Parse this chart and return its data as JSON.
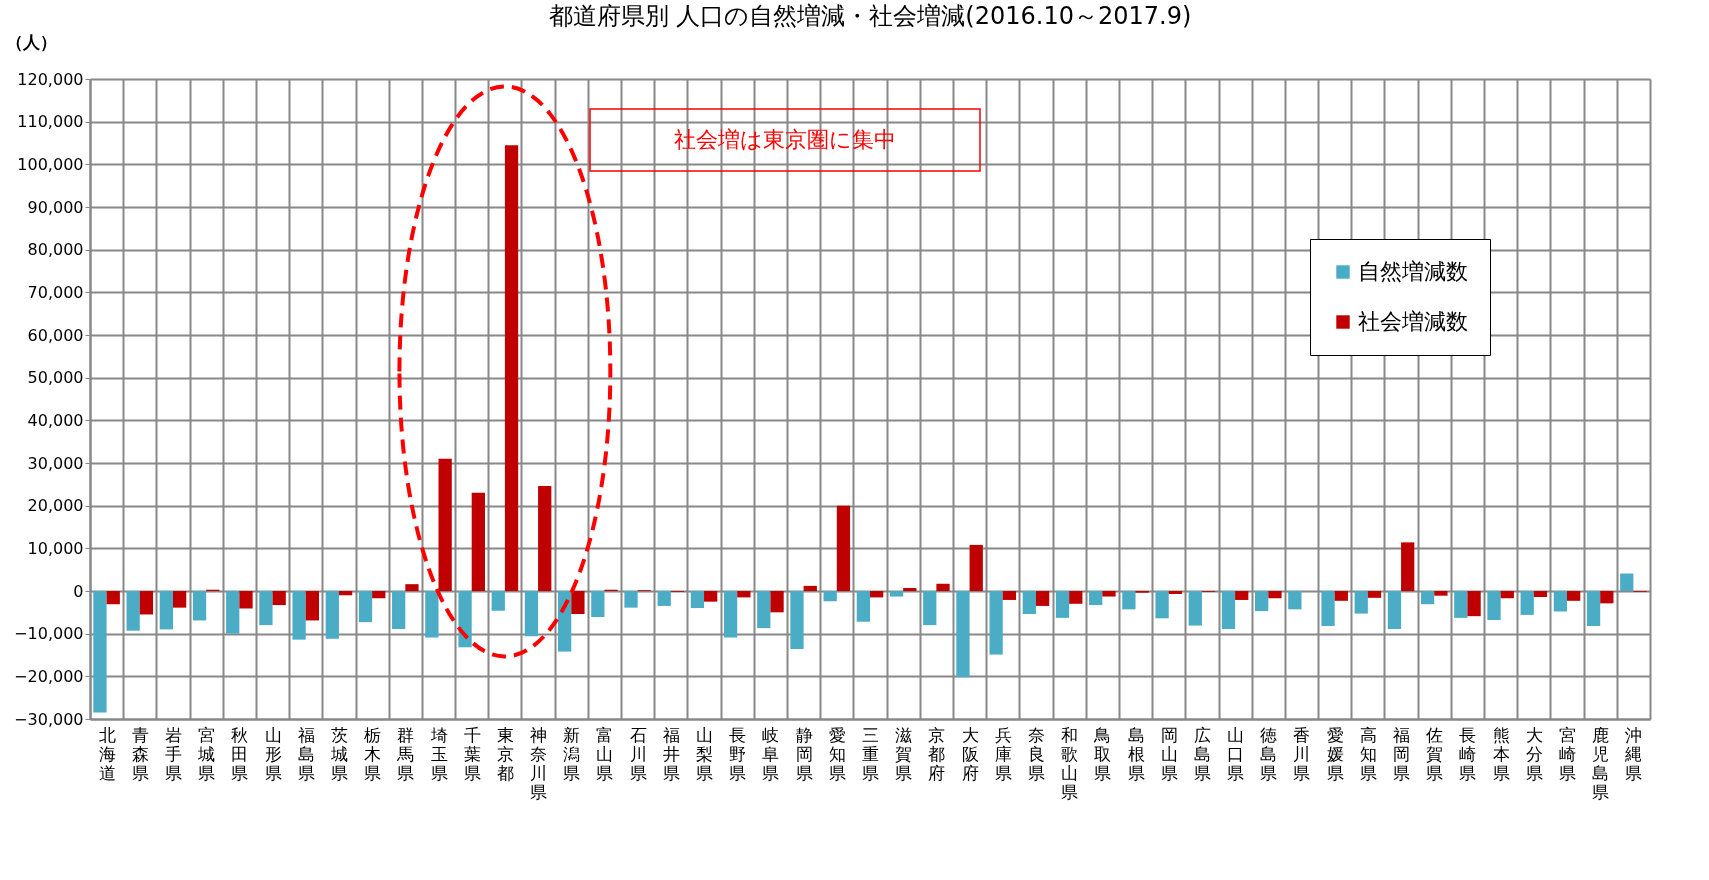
{
  "chart_data": {
    "type": "bar",
    "title": "都道府県別 人口の自然増減・社会増減(2016.10～2017.9)",
    "ylabel": "（人）",
    "categories": [
      "北海道",
      "青森県",
      "岩手県",
      "宮城県",
      "秋田県",
      "山形県",
      "福島県",
      "茨城県",
      "栃木県",
      "群馬県",
      "埼玉県",
      "千葉県",
      "東京都",
      "神奈川県",
      "新潟県",
      "富山県",
      "石川県",
      "福井県",
      "山梨県",
      "長野県",
      "岐阜県",
      "静岡県",
      "愛知県",
      "三重県",
      "滋賀県",
      "京都府",
      "大阪府",
      "兵庫県",
      "奈良県",
      "和歌山県",
      "鳥取県",
      "島根県",
      "岡山県",
      "広島県",
      "山口県",
      "徳島県",
      "香川県",
      "愛媛県",
      "高知県",
      "福岡県",
      "佐賀県",
      "長崎県",
      "熊本県",
      "大分県",
      "宮崎県",
      "鹿児島県",
      "沖縄県"
    ],
    "series": [
      {
        "name": "自然増減数",
        "color": "#4bacc6",
        "values": [
          -28500,
          -9300,
          -9000,
          -6900,
          -10000,
          -8000,
          -11400,
          -11200,
          -7300,
          -8900,
          -10900,
          -13200,
          -4600,
          -10600,
          -14200,
          -6100,
          -3900,
          -3500,
          -4000,
          -10900,
          -8700,
          -13600,
          -2400,
          -7200,
          -1300,
          -8000,
          -20200,
          -14900,
          -5400,
          -6300,
          -3300,
          -4300,
          -6400,
          -8100,
          -8900,
          -4700,
          -4300,
          -8200,
          -5300,
          -8900,
          -3100,
          -6300,
          -6800,
          -5600,
          -4800,
          -8200,
          4100
        ]
      },
      {
        "name": "社会増減数",
        "color": "#c00000",
        "values": [
          -3100,
          -5500,
          -3900,
          300,
          -4100,
          -3300,
          -6900,
          -1000,
          -1700,
          1600,
          31000,
          23000,
          104500,
          24600,
          -5400,
          300,
          200,
          -200,
          -2500,
          -1500,
          -5000,
          1200,
          20000,
          -1500,
          700,
          1700,
          10800,
          -2100,
          -3500,
          -3000,
          -1300,
          -400,
          -700,
          -200,
          -2100,
          -1700,
          null,
          -2300,
          -1600,
          11400,
          -1100,
          -5900,
          -1700,
          -1400,
          -2300,
          -2900,
          -200
        ]
      }
    ],
    "ylim": [
      -30000,
      120000
    ],
    "yticks": [
      {
        "value": -30000,
        "label": "−30,000"
      },
      {
        "value": -20000,
        "label": "−20,000"
      },
      {
        "value": -10000,
        "label": "−10,000"
      },
      0,
      {
        "value": 10000,
        "label": "10,000"
      },
      {
        "value": 20000,
        "label": "20,000"
      },
      {
        "value": 30000,
        "label": "30,000"
      },
      {
        "value": 40000,
        "label": "40,000"
      },
      {
        "value": 50000,
        "label": "50,000"
      },
      {
        "value": 60000,
        "label": "60,000"
      },
      {
        "value": 70000,
        "label": "70,000"
      },
      {
        "value": 80000,
        "label": "80,000"
      },
      {
        "value": 90000,
        "label": "90,000"
      },
      {
        "value": 100000,
        "label": "100,000"
      },
      {
        "value": 110000,
        "label": "110,000"
      },
      {
        "value": 120000,
        "label": "120,000"
      }
    ],
    "grid": true,
    "legend": "top right",
    "annotations": [
      "社会増は東京圏に集中"
    ]
  }
}
